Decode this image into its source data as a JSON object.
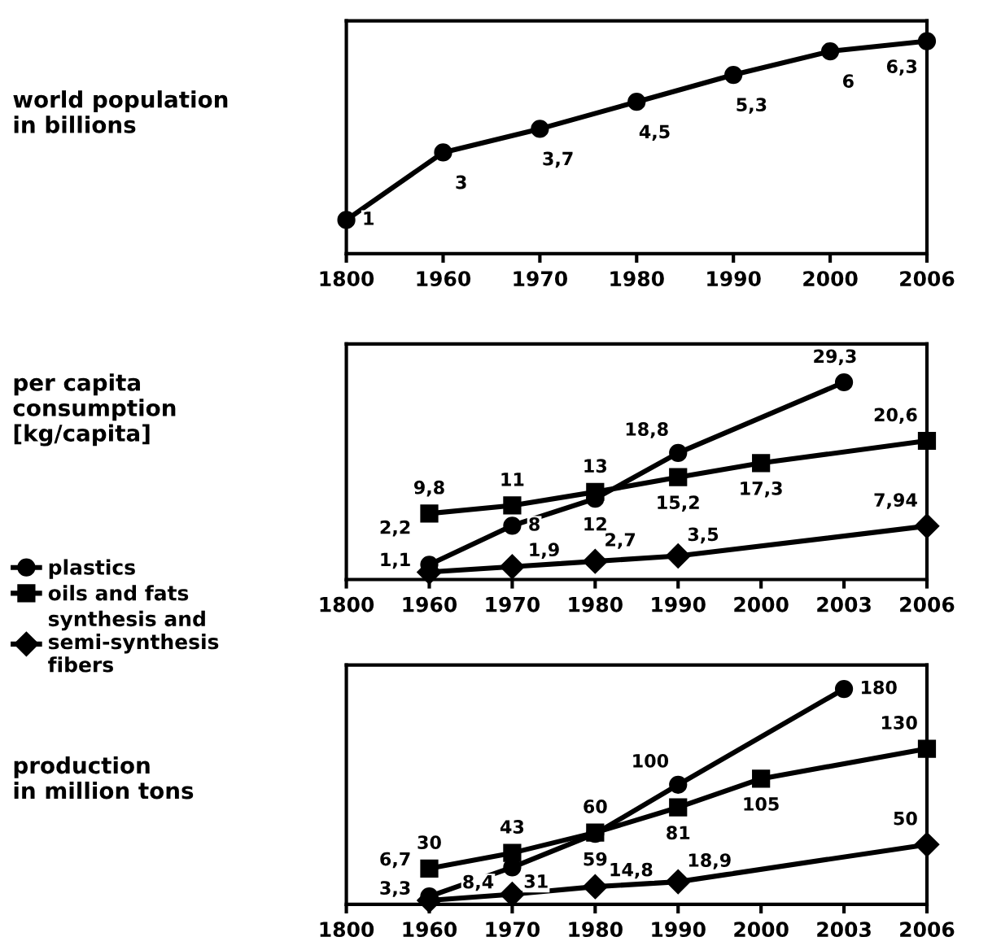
{
  "chart_data": [
    {
      "type": "line",
      "ylabel": "world population\nin billions",
      "categories": [
        "1800",
        "1960",
        "1970",
        "1980",
        "1990",
        "2000",
        "2006"
      ],
      "ylim": [
        0,
        6.9
      ],
      "tick_labels": "x",
      "marker": "circle",
      "legend": false,
      "series": [
        {
          "color": "#000000",
          "values": [
            1,
            3,
            3.7,
            4.5,
            5.3,
            6,
            6.3
          ],
          "value_labels": [
            "1",
            "3",
            "3,7",
            "4,5",
            "5,3",
            "6",
            "6,3"
          ]
        }
      ]
    },
    {
      "type": "line",
      "ylabel": "per capita\nconsumption\n[kg/capita]",
      "categories": [
        "1800",
        "1960",
        "1970",
        "1980",
        "1990",
        "2000",
        "2003",
        "2006"
      ],
      "ylim": [
        0,
        35
      ],
      "tick_labels": "x",
      "legend": "left",
      "series": [
        {
          "name": "plastics",
          "color": "#000000",
          "marker": "circle",
          "values": [
            null,
            2.2,
            8,
            12,
            18.8,
            null,
            29.3,
            null
          ],
          "value_labels": [
            null,
            "2,2",
            "8",
            "12",
            "18,8",
            null,
            "29,3",
            null
          ]
        },
        {
          "name": "oils and fats",
          "color": "#000000",
          "marker": "square",
          "values": [
            null,
            9.8,
            11,
            13,
            15.2,
            17.3,
            null,
            20.6
          ],
          "value_labels": [
            null,
            "9,8",
            "11",
            "13",
            "15,2",
            "17,3",
            null,
            "20,6"
          ]
        },
        {
          "name": "synthesis and\nsemi-synthesis\nfibers",
          "color": "#000000",
          "marker": "diamond",
          "values": [
            null,
            1.1,
            1.9,
            2.7,
            3.5,
            null,
            null,
            7.94
          ],
          "value_labels": [
            null,
            "1,1",
            "1,9",
            "2,7",
            "3,5",
            null,
            null,
            "7,94"
          ]
        }
      ]
    },
    {
      "type": "line",
      "ylabel": "production\nin million tons",
      "categories": [
        "1800",
        "1960",
        "1970",
        "1980",
        "1990",
        "2000",
        "2003",
        "2006"
      ],
      "ylim": [
        0,
        200
      ],
      "tick_labels": "x",
      "legend": false,
      "series": [
        {
          "color": "#000000",
          "marker": "circle",
          "values": [
            null,
            6.7,
            31,
            59,
            100,
            null,
            180,
            null
          ],
          "value_labels": [
            null,
            "6,7",
            "31",
            "59",
            "100",
            null,
            "180",
            null
          ]
        },
        {
          "color": "#000000",
          "marker": "square",
          "values": [
            null,
            30,
            43,
            60,
            81,
            105,
            null,
            130
          ],
          "value_labels": [
            null,
            "30",
            "43",
            "60",
            "81",
            "105",
            null,
            "130"
          ]
        },
        {
          "color": "#000000",
          "marker": "diamond",
          "values": [
            null,
            3.3,
            8.4,
            14.8,
            18.9,
            null,
            null,
            50
          ],
          "value_labels": [
            null,
            "3,3",
            "8,4",
            "14,8",
            "18,9",
            null,
            null,
            "50"
          ]
        }
      ]
    }
  ]
}
